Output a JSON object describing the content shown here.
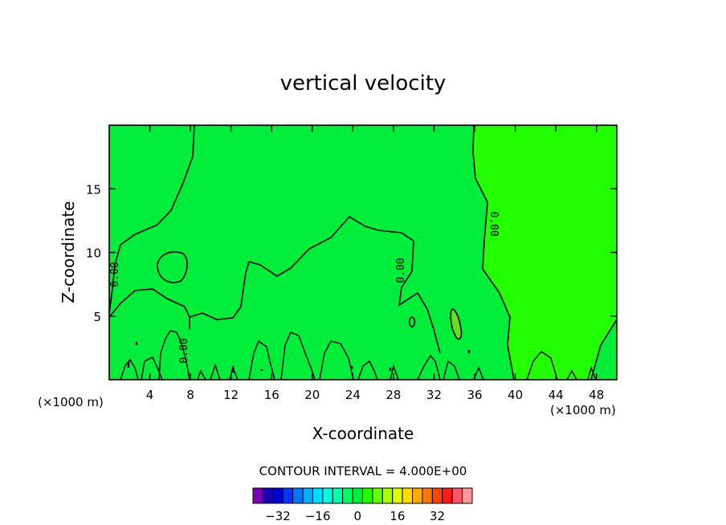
{
  "chart_data": {
    "type": "heatmap",
    "title": "vertical velocity",
    "xlabel": "X-coordinate",
    "ylabel": "Z-coordinate",
    "x_unit_left": "(×1000 m)",
    "x_unit_right": "(×1000 m)",
    "xlim": [
      0,
      50
    ],
    "ylim": [
      0,
      20
    ],
    "x_ticks": [
      4,
      8,
      12,
      16,
      20,
      24,
      28,
      32,
      36,
      40,
      44,
      48
    ],
    "y_ticks": [
      5,
      10,
      15
    ],
    "contour_interval_text": "CONTOUR INTERVAL = 4.000E+00",
    "contour_label": "0.00",
    "regions": {
      "background_color": "#22ff00",
      "negative_color": "#00ee3a",
      "positive_color": "#66dd22"
    },
    "colorbar": {
      "colors": [
        "#7a00b8",
        "#1a00b0",
        "#0000dd",
        "#0035ff",
        "#0077ff",
        "#00aaff",
        "#00ddff",
        "#00ffdd",
        "#00ffaa",
        "#00ff66",
        "#00ee3a",
        "#22ff00",
        "#66ff00",
        "#aaff00",
        "#ddff00",
        "#ffdd00",
        "#ffaa00",
        "#ff7700",
        "#ff4400",
        "#ff1a1a",
        "#ff5566",
        "#ff9999"
      ],
      "tick_labels": [
        "-32",
        "-16",
        "0",
        "16",
        "32"
      ],
      "tick_values": [
        -32,
        -16,
        0,
        16,
        32
      ]
    }
  }
}
